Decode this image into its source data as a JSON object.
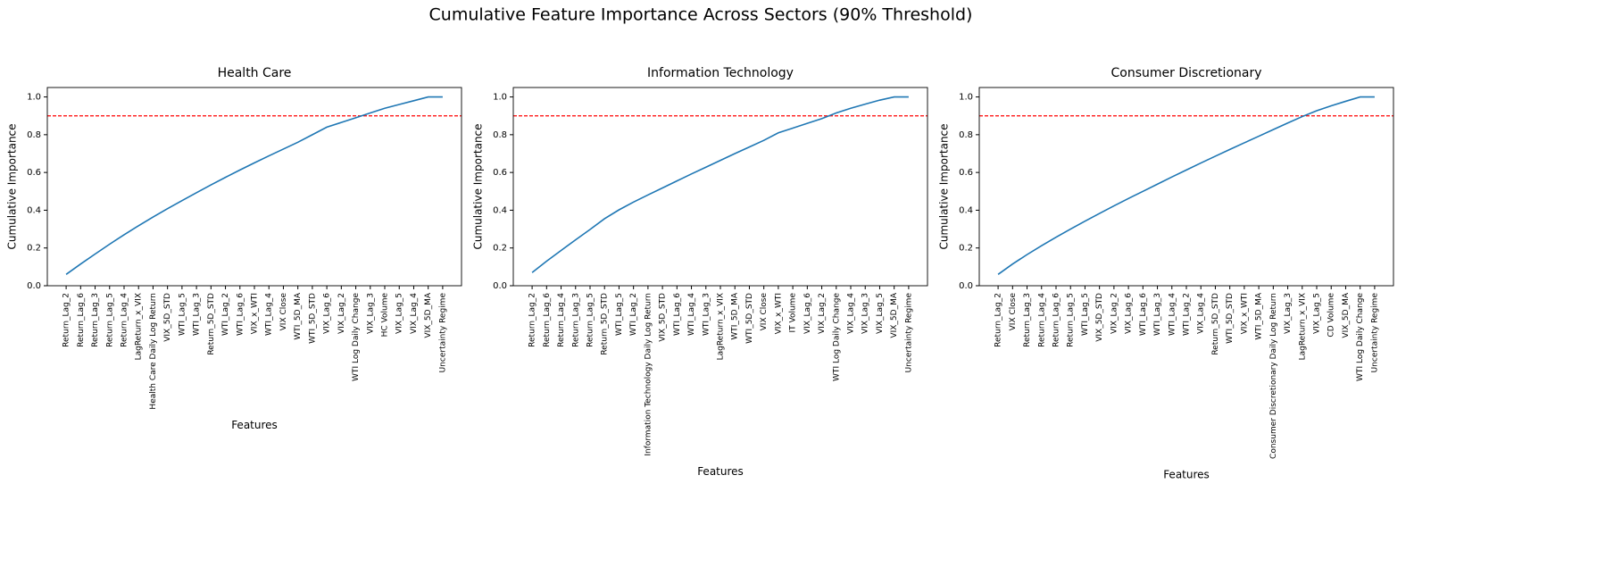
{
  "title": "Cumulative Feature Importance Across Sectors (90% Threshold)",
  "chart_data": [
    {
      "type": "line",
      "title": "Health Care",
      "xlabel": "Features",
      "ylabel": "Cumulative Importance",
      "color": "#1f77b4",
      "threshold": 0.9,
      "threshold_color": "red",
      "categories": [
        "Return_Lag_2",
        "Return_Lag_6",
        "Return_Lag_3",
        "Return_Lag_5",
        "Return_Lag_4",
        "LagReturn_x_VIX",
        "Health Care Daily Log Return",
        "VIX_5D_STD",
        "WTI_Lag_5",
        "WTI_Lag_3",
        "Return_5D_STD",
        "WTI_Lag_2",
        "WTI_Lag_6",
        "VIX_x_WTI",
        "WTI_Lag_4",
        "VIX Close",
        "WTI_5D_MA",
        "WTI_5D_STD",
        "VIX_Lag_6",
        "VIX_Lag_2",
        "WTI Log Daily Change",
        "VIX_Lag_3",
        "HC Volume",
        "VIX_Lag_5",
        "VIX_Lag_4",
        "VIX_5D_MA",
        "Uncertainty Regime"
      ],
      "values": [
        0.06,
        0.115,
        0.168,
        0.22,
        0.27,
        0.318,
        0.364,
        0.408,
        0.451,
        0.493,
        0.534,
        0.574,
        0.613,
        0.651,
        0.688,
        0.724,
        0.76,
        0.8,
        0.84,
        0.865,
        0.89,
        0.915,
        0.94,
        0.96,
        0.98,
        1.0,
        1.0
      ],
      "ylim": [
        0,
        1.05
      ],
      "yticks": [
        {
          "value": 0,
          "label": "0.0"
        },
        0.2,
        0.4,
        0.6,
        0.8,
        {
          "value": 1,
          "label": "1.0"
        }
      ]
    },
    {
      "type": "line",
      "title": "Information Technology",
      "xlabel": "Features",
      "ylabel": "Cumulative Importance",
      "color": "#1f77b4",
      "threshold": 0.9,
      "threshold_color": "red",
      "categories": [
        "Return_Lag_2",
        "Return_Lag_6",
        "Return_Lag_4",
        "Return_Lag_3",
        "Return_Lag_5",
        "Return_5D_STD",
        "WTI_Lag_5",
        "WTI_Lag_2",
        "Information Technology Daily Log Return",
        "VIX_5D_STD",
        "WTI_Lag_6",
        "WTI_Lag_4",
        "WTI_Lag_3",
        "LagReturn_x_VIX",
        "WTI_5D_MA",
        "WTI_5D_STD",
        "VIX Close",
        "VIX_x_WTI",
        "IT Volume",
        "VIX_Lag_6",
        "VIX_Lag_2",
        "WTI Log Daily Change",
        "VIX_Lag_4",
        "VIX_Lag_3",
        "VIX_Lag_5",
        "VIX_5D_MA",
        "Uncertainty Regime"
      ],
      "values": [
        0.07,
        0.13,
        0.187,
        0.243,
        0.298,
        0.355,
        0.402,
        0.443,
        0.481,
        0.518,
        0.555,
        0.592,
        0.628,
        0.664,
        0.7,
        0.735,
        0.77,
        0.81,
        0.835,
        0.86,
        0.885,
        0.915,
        0.94,
        0.962,
        0.983,
        1.0,
        1.0
      ],
      "ylim": [
        0,
        1.05
      ],
      "yticks": [
        {
          "value": 0,
          "label": "0.0"
        },
        0.2,
        0.4,
        0.6,
        0.8,
        {
          "value": 1,
          "label": "1.0"
        }
      ]
    },
    {
      "type": "line",
      "title": "Consumer Discretionary",
      "xlabel": "Features",
      "ylabel": "Cumulative Importance",
      "color": "#1f77b4",
      "threshold": 0.9,
      "threshold_color": "red",
      "categories": [
        "Return_Lag_2",
        "VIX Close",
        "Return_Lag_3",
        "Return_Lag_4",
        "Return_Lag_6",
        "Return_Lag_5",
        "WTI_Lag_5",
        "VIX_5D_STD",
        "VIX_Lag_2",
        "VIX_Lag_6",
        "WTI_Lag_6",
        "WTI_Lag_3",
        "WTI_Lag_4",
        "WTI_Lag_2",
        "VIX_Lag_4",
        "Return_5D_STD",
        "WTI_5D_STD",
        "VIX_x_WTI",
        "WTI_5D_MA",
        "Consumer Discretionary Daily Log Return",
        "VIX_Lag_3",
        "LagReturn_x_VIX",
        "VIX_Lag_5",
        "CD Volume",
        "VIX_5D_MA",
        "WTI Log Daily Change",
        "Uncertainty Regime"
      ],
      "values": [
        0.06,
        0.115,
        0.165,
        0.212,
        0.257,
        0.3,
        0.342,
        0.383,
        0.423,
        0.462,
        0.5,
        0.538,
        0.576,
        0.613,
        0.65,
        0.686,
        0.722,
        0.757,
        0.792,
        0.827,
        0.862,
        0.896,
        0.927,
        0.953,
        0.977,
        1.0,
        1.0
      ],
      "ylim": [
        0,
        1.05
      ],
      "yticks": [
        {
          "value": 0,
          "label": "0.0"
        },
        0.2,
        0.4,
        0.6,
        0.8,
        {
          "value": 1,
          "label": "1.0"
        }
      ]
    }
  ]
}
